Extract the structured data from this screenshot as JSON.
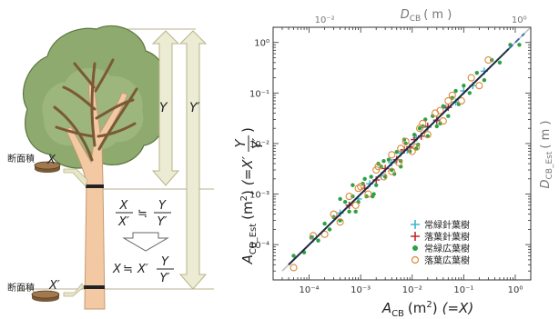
{
  "left_diagram": {
    "area_label": "断面積",
    "var_x": "X",
    "var_x_prime": "X′",
    "var_y": "Y",
    "var_y_prime": "Y′",
    "ratio_equation": {
      "lhs_num": "X",
      "lhs_den": "X′",
      "approx": "≒",
      "rhs_num": "Y",
      "rhs_den": "Y′"
    },
    "result_equation": {
      "lhs": "X",
      "approx": "≒",
      "coef": "X′",
      "num": "Y",
      "den": "Y′"
    }
  },
  "chart_data": {
    "type": "scatter",
    "x_scale": "log",
    "y_scale": "log",
    "xlim": [
      2e-05,
      2
    ],
    "ylim": [
      2e-05,
      2
    ],
    "x_ticks": [
      0.0001,
      0.001,
      0.01,
      0.1,
      1
    ],
    "y_ticks": [
      0.0001,
      0.001,
      0.01,
      0.1,
      1
    ],
    "x_tick_labels": [
      "10⁻⁴",
      "10⁻³",
      "10⁻²",
      "10⁻¹",
      "10⁰"
    ],
    "y_tick_labels": [
      "10⁻⁴",
      "10⁻³",
      "10⁻²",
      "10⁻¹",
      "10⁰"
    ],
    "top_axis": {
      "label_main": "D",
      "label_sub": "CB",
      "label_unit": "( m )",
      "ticks": [
        "10⁻²",
        "10⁰"
      ]
    },
    "right_axis": {
      "label_main": "D",
      "label_sub": "CB_Est",
      "label_unit": "( m )"
    },
    "xlabel": {
      "main": "A",
      "sub": "CB",
      "unit": "(m",
      "unit_sup": "2",
      "unit_close": ")",
      "eq": "(=X)"
    },
    "ylabel": {
      "main": "A",
      "sub": "CB_Est",
      "unit": "(m",
      "unit_sup": "2",
      "unit_close": ")",
      "eq": "(=X′",
      "num": "Y",
      "den": "Y′",
      "close": ")"
    },
    "grid": false,
    "legend_position": "bottom-right",
    "reference_line": {
      "x": [
        3e-05,
        2
      ],
      "y": [
        3e-05,
        2
      ],
      "color": "#bdbdbd"
    },
    "fit_line": {
      "x": [
        4e-05,
        1.5
      ],
      "y": [
        4e-05,
        1.5
      ],
      "color": "#3a6fb0"
    },
    "series": [
      {
        "name": "常緑針葉樹",
        "marker": "plus",
        "color": "#40b4cf",
        "x": [
          0.00012,
          0.0004,
          0.0009,
          0.0015,
          0.0025,
          0.004,
          0.006,
          0.008,
          0.012,
          0.02,
          0.03,
          0.045,
          0.07,
          0.1,
          0.15,
          0.25
        ],
        "y": [
          0.00013,
          0.00042,
          0.0008,
          0.0016,
          0.0023,
          0.0042,
          0.0065,
          0.0075,
          0.013,
          0.021,
          0.028,
          0.05,
          0.066,
          0.11,
          0.14,
          0.27
        ]
      },
      {
        "name": "落葉針葉樹",
        "marker": "plus",
        "color": "#c0282d",
        "x": [
          0.0006,
          0.0012,
          0.002,
          0.003,
          0.005,
          0.007,
          0.009,
          0.011,
          0.015,
          0.02,
          0.03,
          0.05
        ],
        "y": [
          0.0006,
          0.0013,
          0.0019,
          0.0032,
          0.0048,
          0.0075,
          0.0085,
          0.012,
          0.014,
          0.022,
          0.029,
          0.052
        ]
      },
      {
        "name": "常緑広葉樹",
        "marker": "dot",
        "color": "#2ea043",
        "x": [
          5e-05,
          8e-05,
          0.00011,
          0.00015,
          0.0002,
          0.00025,
          0.0003,
          0.0004,
          0.0005,
          0.0006,
          0.0007,
          0.0009,
          0.0011,
          0.0013,
          0.0016,
          0.002,
          0.0025,
          0.003,
          0.0035,
          0.004,
          0.005,
          0.006,
          0.0075,
          0.009,
          0.011,
          0.013,
          0.016,
          0.02,
          0.025,
          0.03,
          0.04,
          0.05,
          0.06,
          0.08,
          0.1,
          0.13,
          0.18,
          0.25,
          0.35,
          0.5,
          0.8,
          1.2,
          0.0004,
          0.0008,
          0.0012,
          0.0018,
          0.0022,
          0.0045,
          0.007,
          0.012,
          0.018,
          0.035,
          0.07,
          0.0007,
          0.0017,
          0.0028,
          0.006,
          0.014
        ],
        "y": [
          6e-05,
          7e-05,
          0.00014,
          0.00012,
          0.00026,
          0.0002,
          0.00035,
          0.0003,
          0.0007,
          0.00045,
          0.0009,
          0.0007,
          0.0016,
          0.0009,
          0.0022,
          0.0015,
          0.0035,
          0.0022,
          0.0048,
          0.003,
          0.0068,
          0.0045,
          0.01,
          0.007,
          0.015,
          0.0095,
          0.022,
          0.014,
          0.035,
          0.022,
          0.055,
          0.035,
          0.08,
          0.06,
          0.14,
          0.1,
          0.25,
          0.18,
          0.45,
          0.4,
          0.9,
          0.9,
          0.0008,
          0.00045,
          0.002,
          0.001,
          0.004,
          0.0025,
          0.012,
          0.008,
          0.03,
          0.025,
          0.11,
          0.0015,
          0.0009,
          0.0045,
          0.0035,
          0.02
        ]
      },
      {
        "name": "落葉広葉樹",
        "marker": "circle",
        "color": "#d98a3a",
        "x": [
          5e-05,
          0.00012,
          0.0002,
          0.0003,
          0.0004,
          0.0006,
          0.0008,
          0.001,
          0.0014,
          0.002,
          0.0028,
          0.004,
          0.0055,
          0.0075,
          0.01,
          0.014,
          0.02,
          0.028,
          0.04,
          0.06,
          0.09,
          0.14,
          0.2,
          0.3,
          0.004,
          0.0022,
          0.016,
          0.035,
          0.0009,
          0.006,
          0.012,
          0.05
        ],
        "y": [
          3.5e-05,
          0.00015,
          0.00016,
          0.0004,
          0.00028,
          0.0009,
          0.0006,
          0.0014,
          0.001,
          0.003,
          0.0022,
          0.006,
          0.0042,
          0.011,
          0.007,
          0.02,
          0.015,
          0.04,
          0.028,
          0.09,
          0.07,
          0.2,
          0.14,
          0.45,
          0.0028,
          0.0035,
          0.025,
          0.045,
          0.0013,
          0.008,
          0.0085,
          0.07
        ]
      }
    ]
  }
}
